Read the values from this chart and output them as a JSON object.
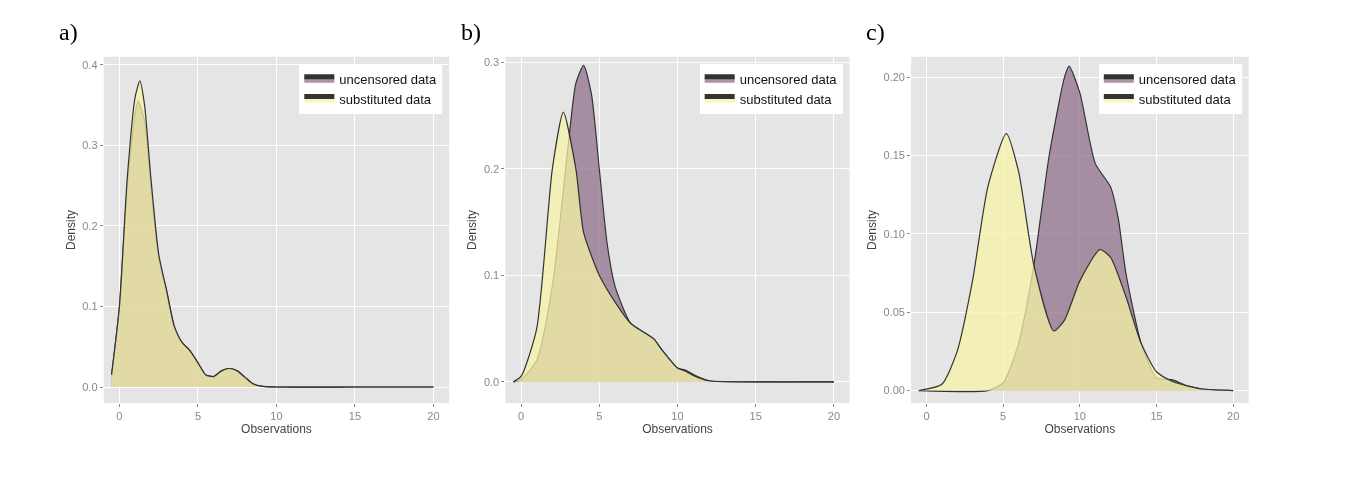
{
  "chart_data": [
    {
      "type": "area",
      "title": "a)",
      "xlabel": "Observations",
      "ylabel": "Density",
      "xlim": [
        -1,
        21
      ],
      "xticks": [
        0,
        5,
        10,
        15,
        20
      ],
      "ylim": [
        -0.02,
        0.41
      ],
      "yticks": [
        {
          "value": 0,
          "label": "0.0"
        },
        0.1,
        0.2,
        0.3,
        0.4
      ],
      "grid": true,
      "legend": "top right",
      "series": [
        {
          "name": "uncensored data",
          "color": "#8f7089",
          "x": [
            -0.5,
            0,
            0.5,
            1,
            1.2,
            1.6,
            2,
            2.5,
            3,
            3.5,
            4,
            4.5,
            5,
            5.5,
            6,
            6.5,
            7,
            7.5,
            8,
            8.5,
            9,
            10,
            15,
            20
          ],
          "values": [
            0.015,
            0.1,
            0.25,
            0.34,
            0.355,
            0.33,
            0.25,
            0.16,
            0.12,
            0.075,
            0.055,
            0.045,
            0.03,
            0.015,
            0.013,
            0.02,
            0.023,
            0.02,
            0.012,
            0.004,
            0.001,
            0,
            0,
            0
          ]
        },
        {
          "name": "substituted data",
          "color": "#f6f3a6",
          "x": [
            -0.5,
            0,
            0.5,
            1,
            1.3,
            1.6,
            2,
            2.5,
            3,
            3.5,
            4,
            4.5,
            5,
            5.5,
            6,
            6.5,
            7,
            7.5,
            8,
            8.5,
            9,
            10,
            15,
            20
          ],
          "values": [
            0.015,
            0.1,
            0.26,
            0.36,
            0.38,
            0.35,
            0.26,
            0.165,
            0.12,
            0.075,
            0.055,
            0.045,
            0.03,
            0.015,
            0.013,
            0.02,
            0.023,
            0.02,
            0.012,
            0.004,
            0.001,
            0,
            0,
            0
          ]
        }
      ]
    },
    {
      "type": "area",
      "title": "b)",
      "xlabel": "Observations",
      "ylabel": "Density",
      "xlim": [
        -1,
        21
      ],
      "xticks": [
        0,
        5,
        10,
        15,
        20
      ],
      "ylim": [
        -0.02,
        0.305
      ],
      "yticks": [
        {
          "value": 0,
          "label": "0.0"
        },
        0.1,
        0.2,
        0.3
      ],
      "grid": true,
      "legend": "top right",
      "series": [
        {
          "name": "uncensored data",
          "color": "#8f7089",
          "x": [
            -0.5,
            0,
            1,
            2,
            3,
            3.5,
            4,
            4.5,
            5,
            5.5,
            6,
            7,
            8,
            8.5,
            9,
            10,
            10.5,
            11,
            12,
            15,
            20
          ],
          "values": [
            0,
            0.002,
            0.02,
            0.09,
            0.22,
            0.28,
            0.297,
            0.27,
            0.2,
            0.13,
            0.09,
            0.055,
            0.045,
            0.04,
            0.03,
            0.013,
            0.011,
            0.007,
            0.001,
            0,
            0
          ]
        },
        {
          "name": "substituted data",
          "color": "#f6f3a6",
          "x": [
            -0.5,
            0,
            1,
            2,
            2.7,
            3.5,
            4,
            5,
            6,
            7,
            8,
            8.5,
            9,
            10,
            10.5,
            11,
            12,
            15,
            20
          ],
          "values": [
            0,
            0.005,
            0.05,
            0.2,
            0.253,
            0.2,
            0.14,
            0.1,
            0.075,
            0.055,
            0.045,
            0.04,
            0.03,
            0.013,
            0.01,
            0.006,
            0.001,
            0,
            0
          ]
        }
      ]
    },
    {
      "type": "area",
      "title": "c)",
      "xlabel": "Observations",
      "ylabel": "Density",
      "xlim": [
        -1,
        21
      ],
      "xticks": [
        0,
        5,
        10,
        15,
        20
      ],
      "ylim": [
        -0.008,
        0.213
      ],
      "yticks": [
        {
          "value": 0,
          "label": "0.00"
        },
        {
          "value": 0.05,
          "label": "0.05"
        },
        {
          "value": 0.1,
          "label": "0.10"
        },
        {
          "value": 0.15,
          "label": "0.15"
        },
        {
          "value": 0.2,
          "label": "0.20"
        }
      ],
      "grid": true,
      "legend": "top right",
      "series": [
        {
          "name": "uncensored data",
          "color": "#8f7089",
          "x": [
            -0.5,
            4,
            5,
            6,
            7,
            8,
            9,
            9.3,
            10,
            11,
            12,
            12.5,
            13,
            14,
            15,
            16,
            17,
            18,
            20
          ],
          "values": [
            0,
            0,
            0.005,
            0.03,
            0.08,
            0.15,
            0.2,
            0.207,
            0.19,
            0.145,
            0.13,
            0.11,
            0.075,
            0.03,
            0.008,
            0.007,
            0.003,
            0.001,
            0
          ]
        },
        {
          "name": "substituted data",
          "color": "#f6f3a6",
          "x": [
            -0.5,
            1,
            2,
            3,
            4,
            5.2,
            6,
            7,
            8.3,
            9,
            10,
            11.3,
            12,
            13,
            14,
            15,
            16,
            17,
            18,
            20
          ],
          "values": [
            0,
            0.004,
            0.025,
            0.07,
            0.13,
            0.164,
            0.14,
            0.08,
            0.038,
            0.045,
            0.07,
            0.09,
            0.085,
            0.06,
            0.03,
            0.012,
            0.006,
            0.003,
            0.001,
            0
          ]
        }
      ]
    }
  ]
}
